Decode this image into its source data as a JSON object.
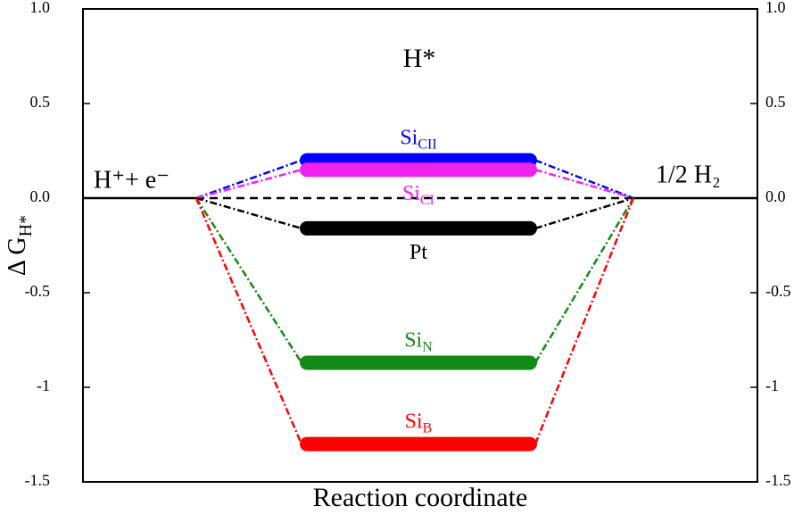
{
  "chart_data": {
    "type": "energy_diagram",
    "title": "H*",
    "ylabel": "Δ G",
    "ylabel_sub": "H*",
    "xlabel": "Reaction coordinate",
    "initial_state": "H⁺+ e⁻",
    "final_state": "1/2 H₂",
    "ylim": [
      -1.5,
      1.0
    ],
    "yticks": [
      -1.5,
      -1.0,
      -0.5,
      {
        "value": 0,
        "label": "0.0"
      },
      0.5,
      {
        "value": 1,
        "label": "1.0"
      }
    ],
    "yticks_right": true,
    "zero_line": true,
    "series": [
      {
        "name": "Si",
        "subscript": "CII",
        "color": "#0000ff",
        "values": [
          0,
          0.2,
          0
        ],
        "label_side": "above"
      },
      {
        "name": "Si",
        "subscript": "CI",
        "color": "#ee22ee",
        "values": [
          0,
          0.15,
          0
        ],
        "label_side": "below"
      },
      {
        "name": "Pt",
        "color": "#000000",
        "values": [
          0,
          -0.16,
          0
        ],
        "label_side": "below"
      },
      {
        "name": "Si",
        "subscript": "N",
        "color": "#138a13",
        "values": [
          0,
          -0.87,
          0
        ],
        "label_side": "above"
      },
      {
        "name": "Si",
        "subscript": "B",
        "color": "#ff0000",
        "values": [
          0,
          -1.3,
          0
        ],
        "label_side": "above"
      }
    ]
  }
}
